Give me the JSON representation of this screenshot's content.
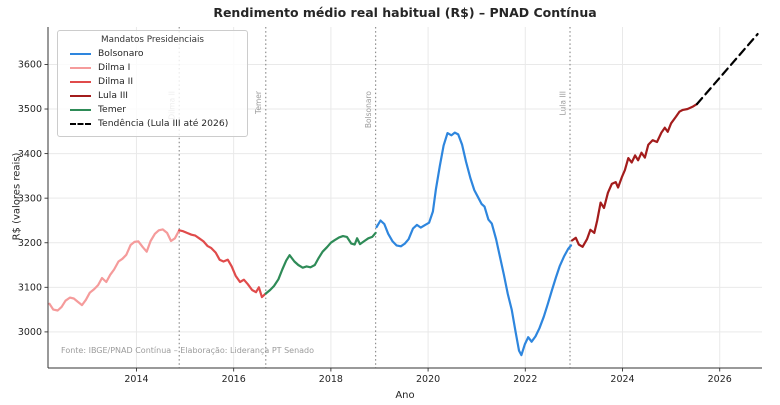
{
  "chart_data": {
    "type": "line",
    "title": "Rendimento médio real habitual (R$) – PNAD Contínua",
    "xlabel": "Ano",
    "ylabel": "R$ (valores reais)",
    "source_note": "Fonte: IBGE/PNAD Contínua – Elaboração: Liderança PT Senado",
    "legend_title": "Mandatos Presidenciais",
    "legend_position": "upper left",
    "grid": true,
    "xlim": [
      2012.18,
      2026.87
    ],
    "ylim": [
      2919,
      3684
    ],
    "x_ticks": [
      2014,
      2016,
      2018,
      2020,
      2022,
      2024,
      2026
    ],
    "y_ticks": [
      3000,
      3100,
      3200,
      3300,
      3400,
      3500,
      3600
    ],
    "grid_color": "#e9e9e9",
    "spine_color": "#333333",
    "tick_label_color": "#262626",
    "mandate_line_color": "#8f8f8f",
    "mandate_label_color": "#9a9a9a",
    "mandate_lines": [
      {
        "label": "Dilma II",
        "x": 2014.88
      },
      {
        "label": "Temer",
        "x": 2016.66
      },
      {
        "label": "Bolsonaro",
        "x": 2018.92
      },
      {
        "label": "Lula III",
        "x": 2022.92
      }
    ],
    "series": [
      {
        "name": "Bolsonaro",
        "color": "#2e86de",
        "style": "solid",
        "points": [
          [
            2018.94,
            3235
          ],
          [
            2019.02,
            3250
          ],
          [
            2019.1,
            3242
          ],
          [
            2019.18,
            3220
          ],
          [
            2019.27,
            3203
          ],
          [
            2019.35,
            3194
          ],
          [
            2019.44,
            3192
          ],
          [
            2019.52,
            3198
          ],
          [
            2019.6,
            3208
          ],
          [
            2019.69,
            3232
          ],
          [
            2019.77,
            3240
          ],
          [
            2019.85,
            3234
          ],
          [
            2019.94,
            3240
          ],
          [
            2020.02,
            3245
          ],
          [
            2020.1,
            3270
          ],
          [
            2020.16,
            3320
          ],
          [
            2020.24,
            3372
          ],
          [
            2020.32,
            3418
          ],
          [
            2020.4,
            3446
          ],
          [
            2020.48,
            3441
          ],
          [
            2020.55,
            3447
          ],
          [
            2020.62,
            3443
          ],
          [
            2020.7,
            3420
          ],
          [
            2020.78,
            3382
          ],
          [
            2020.87,
            3345
          ],
          [
            2020.95,
            3318
          ],
          [
            2021.03,
            3302
          ],
          [
            2021.1,
            3287
          ],
          [
            2021.16,
            3281
          ],
          [
            2021.24,
            3252
          ],
          [
            2021.31,
            3243
          ],
          [
            2021.4,
            3208
          ],
          [
            2021.48,
            3168
          ],
          [
            2021.56,
            3128
          ],
          [
            2021.64,
            3085
          ],
          [
            2021.72,
            3050
          ],
          [
            2021.8,
            3000
          ],
          [
            2021.87,
            2958
          ],
          [
            2021.92,
            2948
          ],
          [
            2021.99,
            2972
          ],
          [
            2022.06,
            2988
          ],
          [
            2022.13,
            2978
          ],
          [
            2022.21,
            2990
          ],
          [
            2022.29,
            3008
          ],
          [
            2022.38,
            3034
          ],
          [
            2022.46,
            3062
          ],
          [
            2022.55,
            3094
          ],
          [
            2022.63,
            3122
          ],
          [
            2022.71,
            3148
          ],
          [
            2022.8,
            3170
          ],
          [
            2022.88,
            3186
          ],
          [
            2022.94,
            3194
          ]
        ]
      },
      {
        "name": "Dilma I",
        "color": "#f59b9b",
        "style": "solid",
        "points": [
          [
            2012.21,
            3063
          ],
          [
            2012.29,
            3050
          ],
          [
            2012.38,
            3048
          ],
          [
            2012.46,
            3056
          ],
          [
            2012.54,
            3070
          ],
          [
            2012.63,
            3077
          ],
          [
            2012.71,
            3075
          ],
          [
            2012.79,
            3068
          ],
          [
            2012.88,
            3060
          ],
          [
            2012.96,
            3072
          ],
          [
            2013.04,
            3088
          ],
          [
            2013.13,
            3096
          ],
          [
            2013.21,
            3105
          ],
          [
            2013.29,
            3121
          ],
          [
            2013.38,
            3112
          ],
          [
            2013.46,
            3128
          ],
          [
            2013.54,
            3140
          ],
          [
            2013.63,
            3158
          ],
          [
            2013.71,
            3164
          ],
          [
            2013.79,
            3173
          ],
          [
            2013.88,
            3195
          ],
          [
            2013.96,
            3202
          ],
          [
            2014.04,
            3203
          ],
          [
            2014.13,
            3190
          ],
          [
            2014.21,
            3180
          ],
          [
            2014.29,
            3204
          ],
          [
            2014.38,
            3220
          ],
          [
            2014.46,
            3228
          ],
          [
            2014.54,
            3230
          ],
          [
            2014.63,
            3222
          ],
          [
            2014.71,
            3204
          ],
          [
            2014.79,
            3210
          ],
          [
            2014.88,
            3228
          ]
        ]
      },
      {
        "name": "Dilma II",
        "color": "#e04b4b",
        "style": "solid",
        "points": [
          [
            2014.88,
            3228
          ],
          [
            2014.96,
            3226
          ],
          [
            2015.04,
            3222
          ],
          [
            2015.13,
            3218
          ],
          [
            2015.21,
            3216
          ],
          [
            2015.29,
            3210
          ],
          [
            2015.38,
            3203
          ],
          [
            2015.46,
            3193
          ],
          [
            2015.54,
            3188
          ],
          [
            2015.63,
            3178
          ],
          [
            2015.71,
            3162
          ],
          [
            2015.79,
            3158
          ],
          [
            2015.88,
            3162
          ],
          [
            2015.96,
            3147
          ],
          [
            2016.04,
            3126
          ],
          [
            2016.13,
            3112
          ],
          [
            2016.21,
            3117
          ],
          [
            2016.29,
            3107
          ],
          [
            2016.38,
            3094
          ],
          [
            2016.46,
            3089
          ],
          [
            2016.52,
            3100
          ],
          [
            2016.58,
            3078
          ],
          [
            2016.66,
            3086
          ]
        ]
      },
      {
        "name": "Lula III",
        "color": "#a31c1c",
        "style": "solid",
        "points": [
          [
            2022.96,
            3205
          ],
          [
            2023.04,
            3211
          ],
          [
            2023.1,
            3196
          ],
          [
            2023.18,
            3191
          ],
          [
            2023.27,
            3208
          ],
          [
            2023.34,
            3229
          ],
          [
            2023.42,
            3222
          ],
          [
            2023.48,
            3250
          ],
          [
            2023.55,
            3290
          ],
          [
            2023.62,
            3278
          ],
          [
            2023.7,
            3312
          ],
          [
            2023.78,
            3332
          ],
          [
            2023.86,
            3336
          ],
          [
            2023.91,
            3324
          ],
          [
            2023.99,
            3348
          ],
          [
            2024.05,
            3363
          ],
          [
            2024.12,
            3390
          ],
          [
            2024.19,
            3380
          ],
          [
            2024.26,
            3396
          ],
          [
            2024.32,
            3385
          ],
          [
            2024.39,
            3402
          ],
          [
            2024.46,
            3391
          ],
          [
            2024.53,
            3420
          ],
          [
            2024.62,
            3430
          ],
          [
            2024.71,
            3426
          ],
          [
            2024.8,
            3447
          ],
          [
            2024.87,
            3458
          ],
          [
            2024.93,
            3449
          ],
          [
            2025.0,
            3468
          ],
          [
            2025.1,
            3483
          ],
          [
            2025.17,
            3494
          ],
          [
            2025.24,
            3498
          ],
          [
            2025.34,
            3500
          ],
          [
            2025.44,
            3505
          ],
          [
            2025.53,
            3511
          ]
        ]
      },
      {
        "name": "Temer",
        "color": "#2e8b57",
        "style": "solid",
        "points": [
          [
            2016.66,
            3086
          ],
          [
            2016.75,
            3094
          ],
          [
            2016.83,
            3103
          ],
          [
            2016.92,
            3118
          ],
          [
            2017.0,
            3140
          ],
          [
            2017.08,
            3160
          ],
          [
            2017.15,
            3172
          ],
          [
            2017.25,
            3158
          ],
          [
            2017.33,
            3150
          ],
          [
            2017.42,
            3144
          ],
          [
            2017.5,
            3147
          ],
          [
            2017.58,
            3145
          ],
          [
            2017.67,
            3150
          ],
          [
            2017.75,
            3166
          ],
          [
            2017.83,
            3180
          ],
          [
            2017.92,
            3190
          ],
          [
            2018.0,
            3200
          ],
          [
            2018.08,
            3206
          ],
          [
            2018.17,
            3212
          ],
          [
            2018.25,
            3215
          ],
          [
            2018.33,
            3213
          ],
          [
            2018.42,
            3198
          ],
          [
            2018.49,
            3196
          ],
          [
            2018.54,
            3210
          ],
          [
            2018.6,
            3197
          ],
          [
            2018.69,
            3204
          ],
          [
            2018.77,
            3210
          ],
          [
            2018.85,
            3213
          ],
          [
            2018.92,
            3222
          ]
        ]
      },
      {
        "name": "Tendência (Lula III até 2026)",
        "color": "#000000",
        "style": "dashed",
        "points": [
          [
            2025.53,
            3511
          ],
          [
            2026.78,
            3668
          ]
        ]
      }
    ]
  }
}
